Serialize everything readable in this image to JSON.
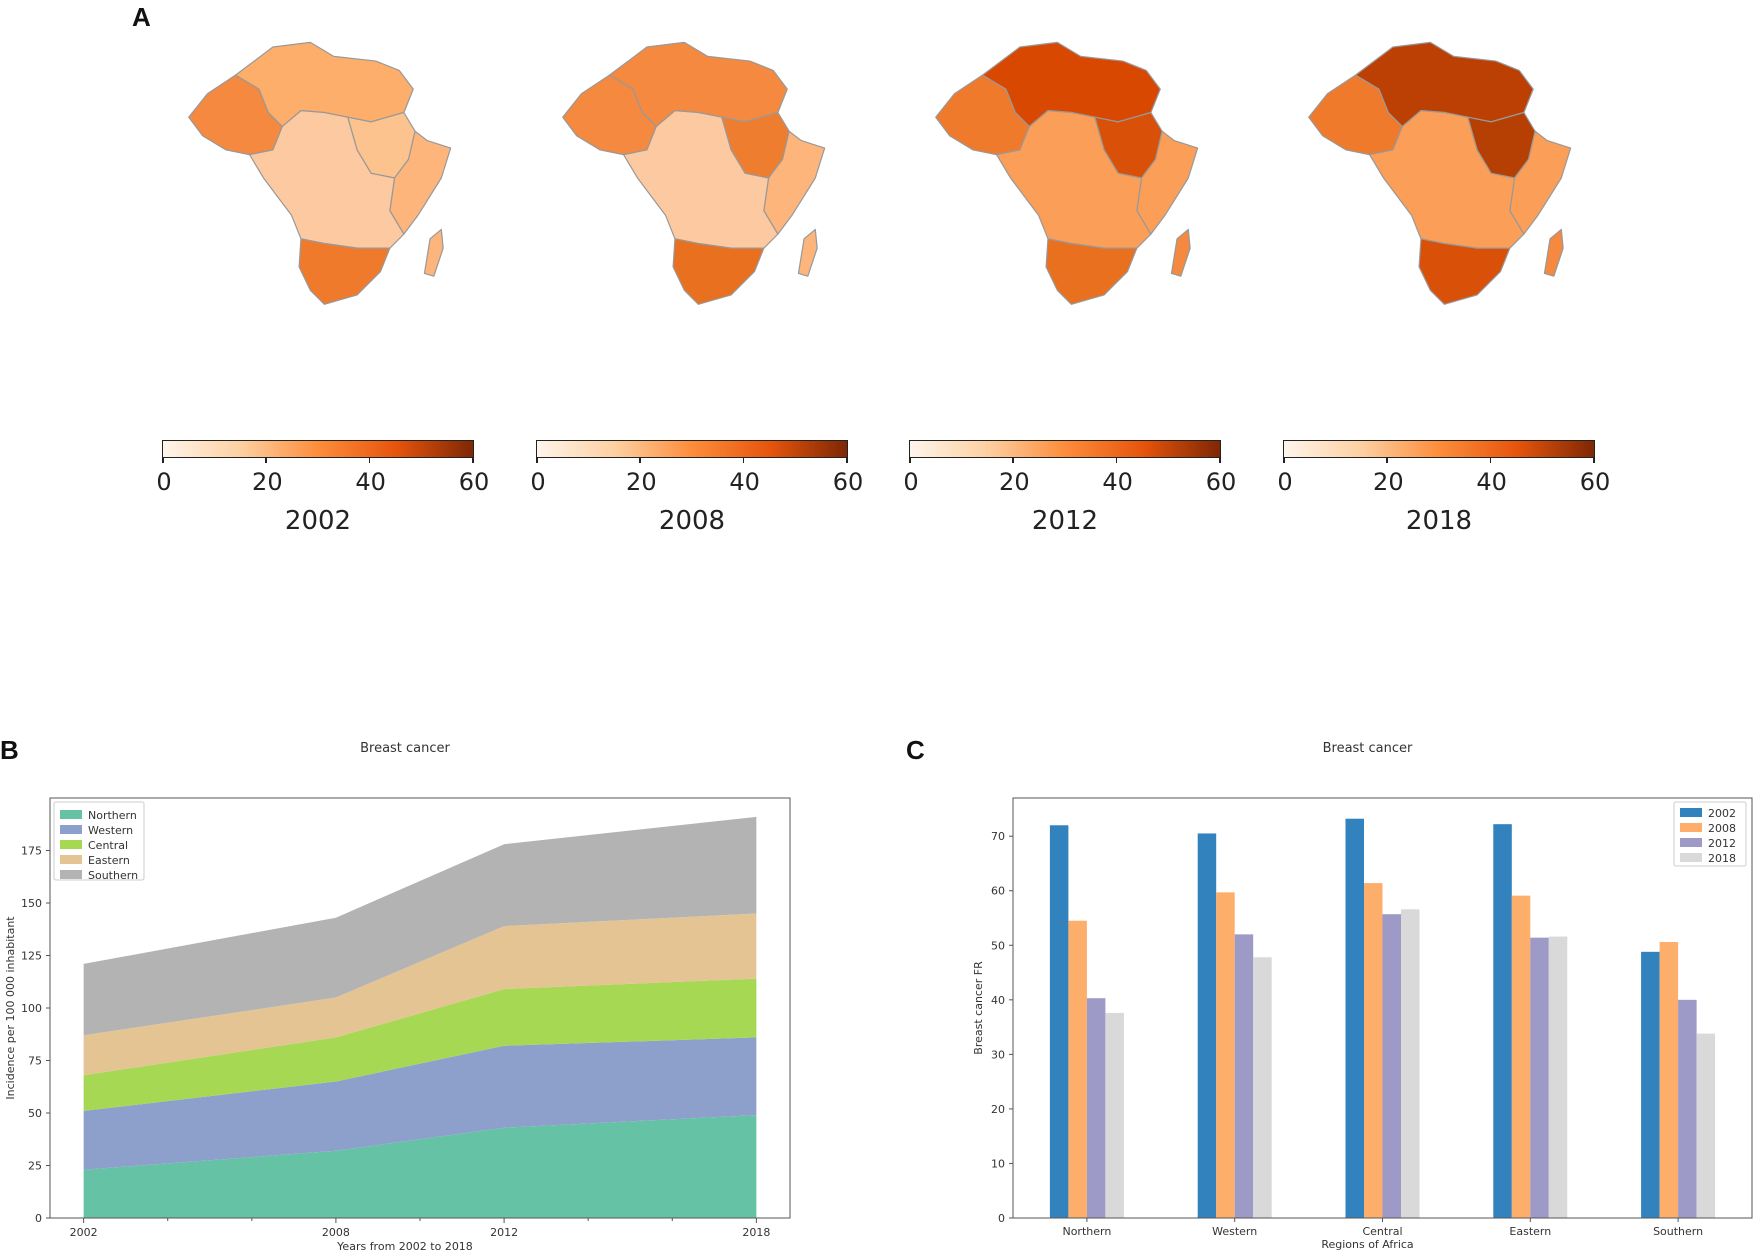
{
  "panel_labels": {
    "a": "A",
    "b": "B",
    "c": "C"
  },
  "maps": [
    {
      "year": "2002",
      "fill_north": "#fdae6b",
      "fill_nw": "#f4893f",
      "fill_sudan": "#fdc38f",
      "fill_east": "#fdb57c",
      "fill_central": "#fdc9a0",
      "fill_south": "#f07a2c",
      "fill_madagascar": "#fdb57c"
    },
    {
      "year": "2008",
      "fill_north": "#f4893f",
      "fill_nw": "#f4893f",
      "fill_sudan": "#ef7d30",
      "fill_east": "#fdb57c",
      "fill_central": "#fdc9a0",
      "fill_south": "#e8701f",
      "fill_madagascar": "#fdb57c"
    },
    {
      "year": "2012",
      "fill_north": "#d94801",
      "fill_nw": "#f07a2c",
      "fill_sudan": "#d95008",
      "fill_east": "#fb9e57",
      "fill_central": "#fb9e57",
      "fill_south": "#e8701f",
      "fill_madagascar": "#f4893f"
    },
    {
      "year": "2018",
      "fill_north": "#bc4004",
      "fill_nw": "#f07a2c",
      "fill_sudan": "#b63f04",
      "fill_east": "#fb9e57",
      "fill_central": "#fb9e57",
      "fill_south": "#d95008",
      "fill_madagascar": "#f4893f"
    }
  ],
  "colorbar": {
    "ticks": [
      "0",
      "20",
      "40",
      "60"
    ],
    "vmin": 0,
    "vmax": 60,
    "colors": [
      "#fff5eb",
      "#fdd0a2",
      "#fd8d3c",
      "#e6550d",
      "#7f2704"
    ]
  },
  "chart_data": [
    {
      "type": "area",
      "title": "Breast cancer",
      "xlabel": "Years from 2002 to 2018",
      "ylabel": "Incidence per 100 000 inhabitant",
      "x": [
        2002,
        2008,
        2012,
        2018
      ],
      "xticks": [
        "2002",
        "2008",
        "2012",
        "2018"
      ],
      "ylim": [
        0,
        200
      ],
      "yticks": [
        "0",
        "25",
        "50",
        "75",
        "100",
        "125",
        "150",
        "175"
      ],
      "stacked": true,
      "legend_location": "top-left",
      "series": [
        {
          "name": "Northern",
          "values": [
            23,
            32,
            43,
            49
          ],
          "color": "#66c2a5"
        },
        {
          "name": "Western",
          "values": [
            28,
            33,
            39,
            37
          ],
          "color": "#8da0cb"
        },
        {
          "name": "Central",
          "values": [
            17,
            21,
            27,
            28
          ],
          "color": "#a6d854"
        },
        {
          "name": "Eastern",
          "values": [
            19,
            19,
            30,
            31
          ],
          "color": "#e5c494"
        },
        {
          "name": "Southern",
          "values": [
            34,
            38,
            39,
            46
          ],
          "color": "#b3b3b3"
        }
      ]
    },
    {
      "type": "bar",
      "title": "Breast cancer",
      "xlabel": "Regions of Africa",
      "ylabel": "Breast cancer FR",
      "categories": [
        "Northern",
        "Western",
        "Central",
        "Eastern",
        "Southern"
      ],
      "ylim": [
        0,
        77
      ],
      "yticks": [
        "0",
        "10",
        "20",
        "30",
        "40",
        "50",
        "60",
        "70"
      ],
      "legend_location": "top-right",
      "series": [
        {
          "name": "2002",
          "values": [
            72,
            70.5,
            73.2,
            72.2,
            48.8
          ],
          "color": "#3182bd"
        },
        {
          "name": "2008",
          "values": [
            54.5,
            59.7,
            61.4,
            59.1,
            50.6
          ],
          "color": "#fdae6b"
        },
        {
          "name": "2012",
          "values": [
            40.3,
            52,
            55.7,
            51.4,
            40
          ],
          "color": "#9e9ac8"
        },
        {
          "name": "2018",
          "values": [
            37.6,
            47.8,
            56.6,
            51.6,
            33.8
          ],
          "color": "#d9d9d9"
        }
      ]
    }
  ]
}
